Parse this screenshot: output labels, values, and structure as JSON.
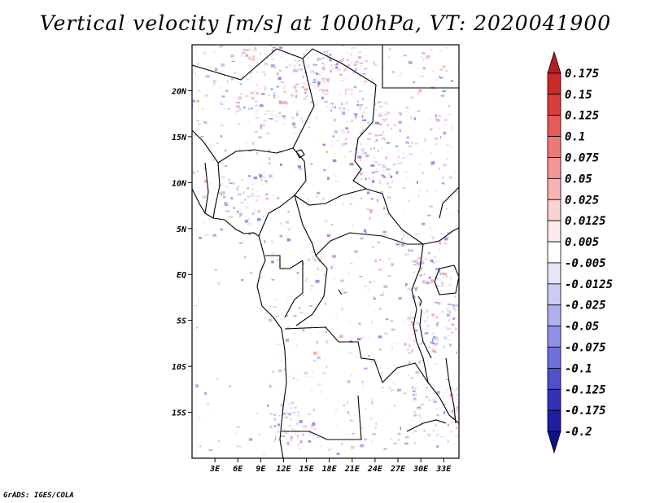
{
  "title": "Vertical velocity [m/s] at 1000hPa, VT: 2020041900",
  "credit": "GrADS: IGES/COLA",
  "map": {
    "lat_ticks": [
      "20N",
      "15N",
      "10N",
      "5N",
      "EQ",
      "5S",
      "10S",
      "15S"
    ],
    "lat_values": [
      20,
      15,
      10,
      5,
      0,
      -5,
      -10,
      -15
    ],
    "lon_ticks": [
      "3E",
      "6E",
      "9E",
      "12E",
      "15E",
      "18E",
      "21E",
      "24E",
      "27E",
      "30E",
      "33E"
    ],
    "lon_values": [
      3,
      6,
      9,
      12,
      15,
      18,
      21,
      24,
      27,
      30,
      33
    ],
    "extent": {
      "lon_min": 0,
      "lon_max": 35,
      "lat_min": -20,
      "lat_max": 25
    }
  },
  "colorbar": {
    "levels": [
      "0.175",
      "0.15",
      "0.125",
      "0.1",
      "0.075",
      "0.05",
      "0.025",
      "0.0125",
      "0.005",
      "-0.005",
      "-0.0125",
      "-0.025",
      "-0.05",
      "-0.075",
      "-0.1",
      "-0.125",
      "-0.175",
      "-0.2"
    ],
    "colors": [
      "#b41e1e",
      "#cc2b2b",
      "#dc3c3c",
      "#e75a5a",
      "#ee7878",
      "#f49696",
      "#f8b4b4",
      "#fbd2d2",
      "#fdeaea",
      "#ffffff",
      "#e6e6fb",
      "#ccccf5",
      "#b0b0ef",
      "#9090e6",
      "#7070dc",
      "#5050cc",
      "#3232b8",
      "#1e1ea0",
      "#10108a"
    ]
  }
}
